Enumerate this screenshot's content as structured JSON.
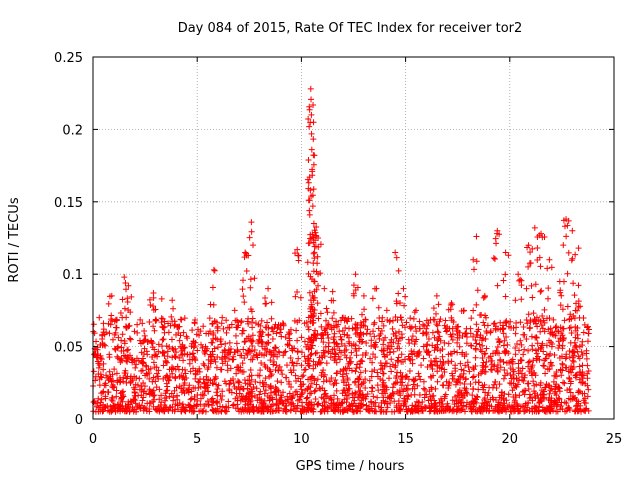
{
  "chart_data": {
    "type": "scatter",
    "title": "Day 084 of 2015, Rate Of TEC Index for receiver tor2",
    "xlabel": "GPS time / hours",
    "ylabel": "ROTI / TECUs",
    "xlim": [
      0,
      25
    ],
    "ylim": [
      0,
      0.25
    ],
    "xticks": [
      "0",
      "5",
      "10",
      "15",
      "20",
      "25"
    ],
    "yticks": [
      "0",
      "0.05",
      "0.1",
      "0.15",
      "0.2",
      "0.25"
    ],
    "grid": true,
    "marker": "+",
    "color": "#ff0000",
    "series": [
      {
        "points": [
          [
            0.1,
            0.045
          ],
          [
            0.3,
            0.07
          ],
          [
            0.5,
            0.06
          ],
          [
            0.9,
            0.085
          ],
          [
            1.2,
            0.05
          ],
          [
            1.5,
            0.098
          ],
          [
            1.7,
            0.092
          ],
          [
            2.0,
            0.04
          ],
          [
            2.5,
            0.03
          ],
          [
            2.9,
            0.087
          ],
          [
            3.3,
            0.083
          ],
          [
            3.8,
            0.082
          ],
          [
            4.4,
            0.045
          ],
          [
            4.8,
            0.035
          ],
          [
            5.4,
            0.05
          ],
          [
            5.8,
            0.103
          ],
          [
            6.2,
            0.07
          ],
          [
            6.8,
            0.075
          ],
          [
            7.3,
            0.115
          ],
          [
            7.6,
            0.136
          ],
          [
            8.0,
            0.06
          ],
          [
            8.4,
            0.09
          ],
          [
            8.9,
            0.065
          ],
          [
            9.4,
            0.06
          ],
          [
            9.8,
            0.117
          ],
          [
            10.2,
            0.04
          ],
          [
            10.45,
            0.228
          ],
          [
            10.48,
            0.21
          ],
          [
            10.5,
            0.186
          ],
          [
            10.52,
            0.171
          ],
          [
            10.55,
            0.147
          ],
          [
            10.6,
            0.135
          ],
          [
            10.8,
            0.125
          ],
          [
            11.1,
            0.09
          ],
          [
            11.5,
            0.088
          ],
          [
            12.0,
            0.07
          ],
          [
            12.6,
            0.1
          ],
          [
            13.0,
            0.085
          ],
          [
            13.6,
            0.09
          ],
          [
            14.1,
            0.075
          ],
          [
            14.5,
            0.115
          ],
          [
            14.9,
            0.09
          ],
          [
            15.5,
            0.075
          ],
          [
            16.0,
            0.06
          ],
          [
            16.5,
            0.085
          ],
          [
            17.2,
            0.08
          ],
          [
            17.8,
            0.075
          ],
          [
            18.4,
            0.126
          ],
          [
            18.8,
            0.085
          ],
          [
            19.4,
            0.13
          ],
          [
            19.8,
            0.115
          ],
          [
            20.4,
            0.1
          ],
          [
            20.9,
            0.12
          ],
          [
            21.2,
            0.132
          ],
          [
            21.5,
            0.128
          ],
          [
            21.9,
            0.11
          ],
          [
            22.4,
            0.095
          ],
          [
            22.7,
            0.138
          ],
          [
            23.0,
            0.13
          ],
          [
            23.3,
            0.118
          ],
          [
            23.6,
            0.065
          ]
        ],
        "dense_band": {
          "x_range": [
            0,
            23.8
          ],
          "y_range": [
            0.005,
            0.07
          ]
        }
      }
    ]
  }
}
